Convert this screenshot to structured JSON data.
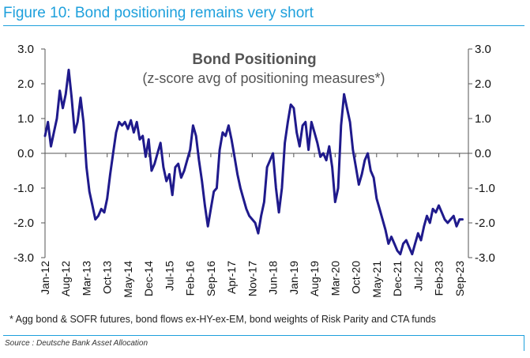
{
  "figure": {
    "title": "Figure 10: Bond positioning remains very short",
    "footnote": "* Agg bond & SOFR futures, bond flows ex-HY-ex-EM, bond weights of Risk Parity and CTA funds",
    "source": "Source : Deutsche Bank Asset Allocation"
  },
  "colors": {
    "accent": "#1ea0dc",
    "series": "#1f1a8c",
    "axis": "#555555"
  },
  "chart_data": {
    "type": "line",
    "title": "Bond Positioning",
    "subtitle": "(z-score avg of positioning measures*)",
    "xlabel": "",
    "ylabel": "",
    "ylim": [
      -3.0,
      3.0
    ],
    "yticks": [
      3.0,
      2.0,
      1.0,
      0.0,
      -1.0,
      -2.0,
      -3.0
    ],
    "ytick_labels": [
      "3.0",
      "2.0",
      "1.0",
      "0.0",
      "-1.0",
      "-2.0",
      "-3.0"
    ],
    "y2ticks": [
      3.0,
      2.0,
      1.0,
      0.0,
      -1.0,
      -2.0,
      -3.0
    ],
    "y2tick_labels": [
      "3.0",
      "2.0",
      "1.0",
      "0.0",
      "-1.0",
      "-2.0",
      "-3.0"
    ],
    "xlim": [
      "2012-01",
      "2023-12"
    ],
    "xticks": [
      "2012-01",
      "2012-08",
      "2013-03",
      "2013-10",
      "2014-05",
      "2014-12",
      "2015-07",
      "2016-02",
      "2016-09",
      "2017-04",
      "2017-11",
      "2018-06",
      "2019-01",
      "2019-08",
      "2020-03",
      "2020-10",
      "2021-05",
      "2021-12",
      "2022-07",
      "2023-02",
      "2023-09"
    ],
    "xtick_labels": [
      "Jan-12",
      "Aug-12",
      "Mar-13",
      "Oct-13",
      "May-14",
      "Dec-14",
      "Jul-15",
      "Feb-16",
      "Sep-16",
      "Apr-17",
      "Nov-17",
      "Jun-18",
      "Jan-19",
      "Aug-19",
      "Mar-20",
      "Oct-20",
      "May-21",
      "Dec-21",
      "Jul-22",
      "Feb-23",
      "Sep-23"
    ],
    "grid": false,
    "series": [
      {
        "x": [
          "2012-01",
          "2012-02",
          "2012-03",
          "2012-04",
          "2012-05",
          "2012-06",
          "2012-07",
          "2012-08",
          "2012-09",
          "2012-10",
          "2012-11",
          "2012-12",
          "2013-01",
          "2013-02",
          "2013-03",
          "2013-04",
          "2013-05",
          "2013-06",
          "2013-07",
          "2013-08",
          "2013-09",
          "2013-10",
          "2013-11",
          "2013-12",
          "2014-01",
          "2014-02",
          "2014-03",
          "2014-04",
          "2014-05",
          "2014-06",
          "2014-07",
          "2014-08",
          "2014-09",
          "2014-10",
          "2014-11",
          "2014-12",
          "2015-01",
          "2015-02",
          "2015-03",
          "2015-04",
          "2015-05",
          "2015-06",
          "2015-07",
          "2015-08",
          "2015-09",
          "2015-10",
          "2015-11",
          "2015-12",
          "2016-01",
          "2016-02",
          "2016-03",
          "2016-04",
          "2016-05",
          "2016-06",
          "2016-07",
          "2016-08",
          "2016-09",
          "2016-10",
          "2016-11",
          "2016-12",
          "2017-01",
          "2017-02",
          "2017-03",
          "2017-04",
          "2017-05",
          "2017-06",
          "2017-07",
          "2017-08",
          "2017-09",
          "2017-10",
          "2017-11",
          "2017-12",
          "2018-01",
          "2018-02",
          "2018-03",
          "2018-04",
          "2018-05",
          "2018-06",
          "2018-07",
          "2018-08",
          "2018-09",
          "2018-10",
          "2018-11",
          "2018-12",
          "2019-01",
          "2019-02",
          "2019-03",
          "2019-04",
          "2019-05",
          "2019-06",
          "2019-07",
          "2019-08",
          "2019-09",
          "2019-10",
          "2019-11",
          "2019-12",
          "2020-01",
          "2020-02",
          "2020-03",
          "2020-04",
          "2020-05",
          "2020-06",
          "2020-07",
          "2020-08",
          "2020-09",
          "2020-10",
          "2020-11",
          "2020-12",
          "2021-01",
          "2021-02",
          "2021-03",
          "2021-04",
          "2021-05",
          "2021-06",
          "2021-07",
          "2021-08",
          "2021-09",
          "2021-10",
          "2021-11",
          "2021-12",
          "2022-01",
          "2022-02",
          "2022-03",
          "2022-04",
          "2022-05",
          "2022-06",
          "2022-07",
          "2022-08",
          "2022-09",
          "2022-10",
          "2022-11",
          "2022-12",
          "2023-01",
          "2023-02",
          "2023-03",
          "2023-04",
          "2023-05",
          "2023-06",
          "2023-07",
          "2023-08",
          "2023-09",
          "2023-10"
        ],
        "values": [
          0.5,
          0.9,
          0.2,
          0.6,
          1.0,
          1.8,
          1.3,
          1.7,
          2.4,
          1.6,
          0.6,
          0.9,
          1.6,
          0.9,
          -0.4,
          -1.1,
          -1.5,
          -1.9,
          -1.8,
          -1.6,
          -1.7,
          -1.3,
          -0.6,
          0.0,
          0.6,
          0.9,
          0.8,
          0.9,
          0.7,
          0.95,
          0.6,
          0.9,
          0.4,
          0.5,
          -0.1,
          0.4,
          -0.5,
          -0.3,
          0.0,
          0.3,
          -0.4,
          -0.8,
          -0.6,
          -1.2,
          -0.4,
          -0.3,
          -0.7,
          -0.5,
          -0.2,
          0.1,
          0.8,
          0.5,
          -0.2,
          -0.8,
          -1.5,
          -2.1,
          -1.6,
          -1.1,
          -1.0,
          0.1,
          0.6,
          0.5,
          0.8,
          0.4,
          -0.1,
          -0.6,
          -1.0,
          -1.3,
          -1.6,
          -1.8,
          -1.9,
          -2.0,
          -2.3,
          -1.8,
          -1.4,
          -0.4,
          -0.2,
          0.0,
          -1.0,
          -1.7,
          -1.0,
          0.3,
          0.9,
          1.4,
          1.3,
          0.6,
          0.2,
          0.8,
          0.9,
          0.1,
          0.9,
          0.6,
          0.3,
          -0.1,
          0.0,
          -0.2,
          0.2,
          -0.4,
          -1.4,
          -1.0,
          0.8,
          1.7,
          1.3,
          0.9,
          0.1,
          -0.4,
          -0.9,
          -0.6,
          -0.2,
          0.0,
          -0.5,
          -0.7,
          -1.3,
          -1.6,
          -1.9,
          -2.2,
          -2.6,
          -2.4,
          -2.6,
          -2.8,
          -2.9,
          -2.6,
          -2.5,
          -2.7,
          -2.9,
          -2.6,
          -2.3,
          -2.5,
          -2.1,
          -1.8,
          -2.0,
          -1.6,
          -1.7,
          -1.5,
          -1.7,
          -1.9,
          -2.0,
          -1.9,
          -1.8,
          -2.1,
          -1.9,
          -1.9
        ]
      }
    ]
  }
}
